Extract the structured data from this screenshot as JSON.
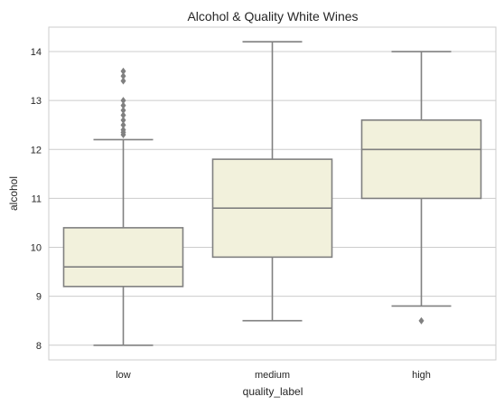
{
  "chart_data": {
    "type": "box",
    "title": "Alcohol & Quality White Wines",
    "xlabel": "quality_label",
    "ylabel": "alcohol",
    "categories": [
      "low",
      "medium",
      "high"
    ],
    "ylim": [
      7.7,
      14.5
    ],
    "yticks": [
      8,
      9,
      10,
      11,
      12,
      13,
      14
    ],
    "grid": true,
    "box_fill": "#f2f1dc",
    "line_color": "#808080",
    "boxes": [
      {
        "category": "low",
        "whisker_low": 8.0,
        "q1": 9.2,
        "median": 9.6,
        "q3": 10.4,
        "whisker_high": 12.2,
        "outliers": [
          12.3,
          12.35,
          12.4,
          12.5,
          12.6,
          12.7,
          12.8,
          12.9,
          13.0,
          13.4,
          13.5,
          13.6
        ]
      },
      {
        "category": "medium",
        "whisker_low": 8.5,
        "q1": 9.8,
        "median": 10.8,
        "q3": 11.8,
        "whisker_high": 14.2,
        "outliers": []
      },
      {
        "category": "high",
        "whisker_low": 8.8,
        "q1": 11.0,
        "median": 12.0,
        "q3": 12.6,
        "whisker_high": 14.0,
        "outliers": [
          8.5
        ]
      }
    ]
  }
}
